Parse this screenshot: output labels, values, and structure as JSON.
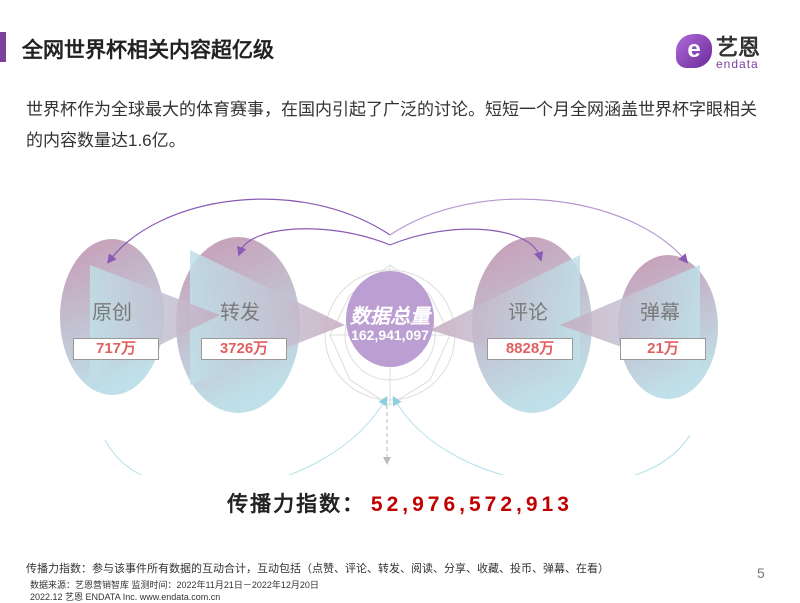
{
  "header": {
    "title": "全网世界杯相关内容超亿级"
  },
  "logo": {
    "cn": "艺恩",
    "en": "endata",
    "color": "#7b3fa0"
  },
  "intro": "世界杯作为全球最大的体育赛事，在国内引起了广泛的讨论。短短一个月全网涵盖世界杯字眼相关的内容数量达1.6亿。",
  "diagram": {
    "center": {
      "title": "数据总量",
      "value": "162,941,097"
    },
    "items": [
      {
        "label": "原创",
        "value": "717万"
      },
      {
        "label": "转发",
        "value": "3726万"
      },
      {
        "label": "评论",
        "value": "8828万"
      },
      {
        "label": "弹幕",
        "value": "21万"
      }
    ]
  },
  "index": {
    "label": "传播力指数：",
    "value": "52,976,572,913",
    "color": "#c00000"
  },
  "footnote": "传播力指数：参与该事件所有数据的互动合计，互动包括（点赞、评论、转发、阅读、分享、收藏、投币、弹幕、在看）",
  "source": "数据来源：艺恩营销智库 监测时间：2022年11月21日－2022年12月20日",
  "copyright": "2022.12 艺恩 ENDATA Inc.    www.endata.com.cn",
  "page": "5"
}
